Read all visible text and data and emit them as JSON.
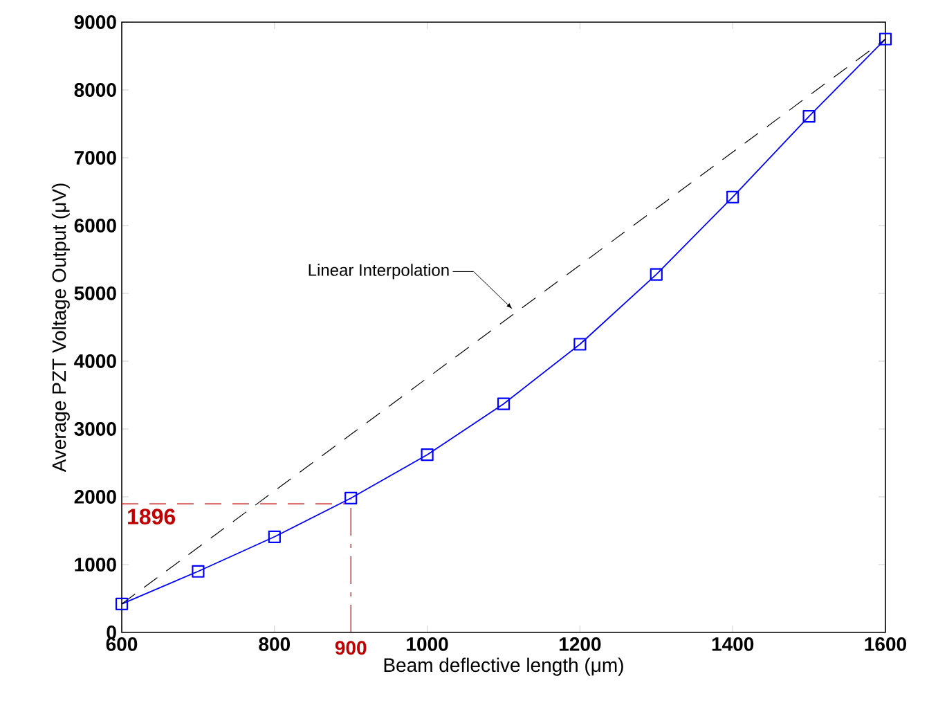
{
  "chart_data": {
    "type": "line",
    "xlabel": "Beam deflective length (μm)",
    "ylabel": "Average PZT Voltage Output (μV)",
    "x": [
      600,
      700,
      800,
      900,
      1000,
      1100,
      1200,
      1300,
      1400,
      1500,
      1600
    ],
    "series": [
      {
        "color": "#0000ff",
        "marker": "square",
        "line_style": "solid",
        "values": [
          420,
          900,
          1410,
          1980,
          2620,
          3370,
          4250,
          5280,
          6420,
          7610,
          8750
        ]
      },
      {
        "name": "Linear Interpolation",
        "color": "#000000",
        "marker": "none",
        "line_style": "dashed",
        "x": [
          600,
          1600
        ],
        "values": [
          420,
          8750
        ]
      }
    ],
    "xlim": [
      600,
      1600
    ],
    "ylim": [
      0,
      9000
    ],
    "xticks": [
      600,
      800,
      1000,
      1200,
      1400,
      1600
    ],
    "yticks": [
      0,
      1000,
      2000,
      3000,
      4000,
      5000,
      6000,
      7000,
      8000,
      9000
    ],
    "ref_lines": [
      {
        "axis": "y",
        "value": 1896,
        "label": "1896",
        "color": "#c00000",
        "line_style": "dashed"
      },
      {
        "axis": "x",
        "value": 900,
        "label": "900",
        "color": "#c00000",
        "line_style": "dashed"
      }
    ],
    "grid": false,
    "legend": false
  }
}
